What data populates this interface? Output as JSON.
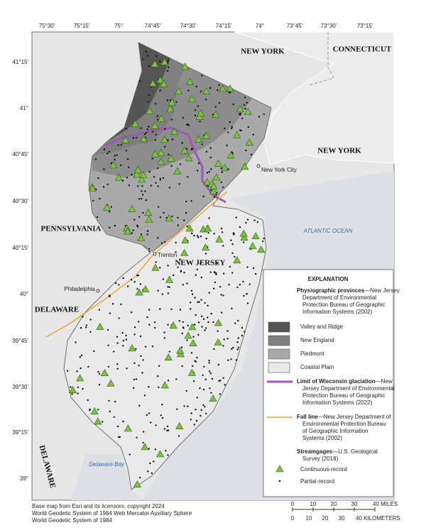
{
  "map": {
    "longitude_labels": [
      "75°30'",
      "75°15'",
      "75°",
      "74°45'",
      "74°30'",
      "74°15'",
      "74°",
      "73°45'",
      "73°30'",
      "73°15'"
    ],
    "latitude_labels": [
      "41°15'",
      "41°",
      "40°45'",
      "40°30'",
      "40°15'",
      "40°",
      "39°45'",
      "39°30'",
      "39°15'",
      "39°"
    ],
    "state_labels": [
      "NEW YORK",
      "CONNECTICUT",
      "NEW YORK",
      "PENNSYLVANIA",
      "NEW JERSEY",
      "DELAWARE",
      "DELAWARE"
    ],
    "water_labels": [
      "ATLANTIC OCEAN",
      "Delaware Bay"
    ],
    "city_labels": [
      "New York City",
      "Trenton",
      "Philadelphia"
    ]
  },
  "legend": {
    "title": "EXPLANATION",
    "provinces": {
      "heading": "Physiographic provinces",
      "lines": [
        "—New Jersey",
        "Department of Environmental",
        "Protection Bureau of Geographic",
        "Information Systems (2002)"
      ],
      "classes": [
        "Valley and Ridge",
        "New England",
        "Piedmont",
        "Coastal Plain"
      ]
    },
    "glaciation": {
      "heading": "Limit of Wisconsin glaciation",
      "lines": [
        "—New",
        "Jersey Department of Environmental",
        "Protection Bureau of Geographic",
        "Information Systems (2022)"
      ]
    },
    "fall_line": {
      "heading": "Fall line",
      "lines": [
        "—New Jersey Department of",
        "Environmental Protection Bureau",
        "of Geographic Information",
        "Systems (2002)"
      ]
    },
    "streamgages": {
      "heading": "Streamgages",
      "lines": [
        "—U.S. Geological",
        "Survey (2018)"
      ],
      "types": [
        "Continuous-record",
        "Partial-record"
      ]
    }
  },
  "scale": {
    "miles": [
      "0",
      "10",
      "20",
      "30",
      "40 MILES"
    ],
    "kilometers": [
      "0",
      "10",
      "20",
      "30",
      "40 KILOMETERS"
    ]
  },
  "credits": [
    "Base map from Esri and its licensors, copyright 2024",
    "World Geodetic System of 1984 Web Mercator Auxiliary Sphere",
    "World Geodetic System of 1984"
  ]
}
